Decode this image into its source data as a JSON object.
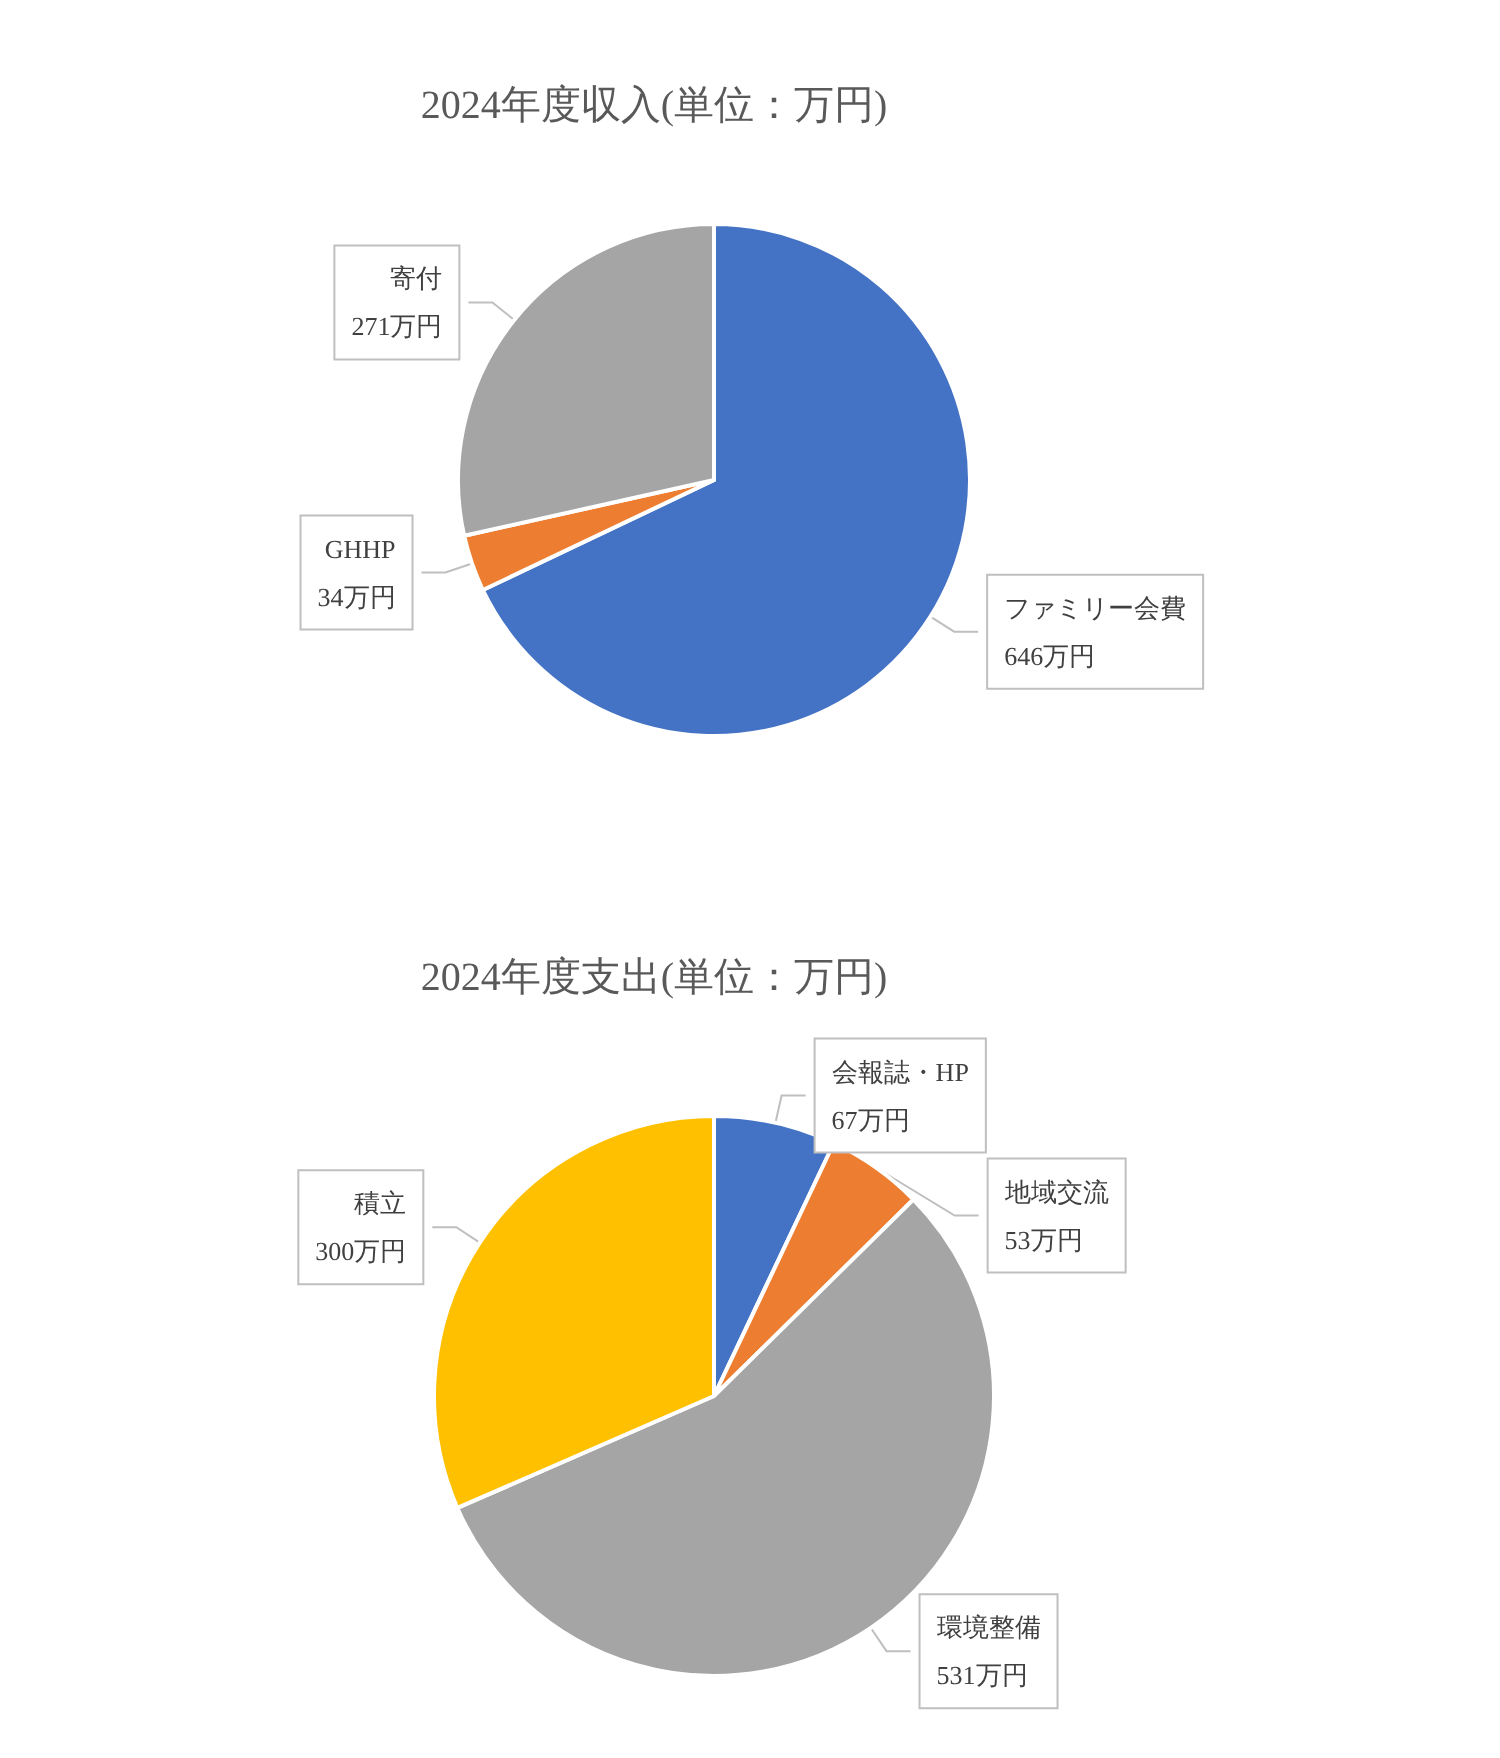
{
  "chart_data": [
    {
      "type": "pie",
      "title": "2024年度収入(単位：万円)",
      "categories": [
        "ファミリー会費",
        "GHHP",
        "寄付"
      ],
      "values": [
        646,
        34,
        271
      ],
      "colors": [
        "#4472c4",
        "#ed7d31",
        "#a5a5a5"
      ],
      "value_labels": [
        "646万円",
        "34万円",
        "271万円"
      ],
      "legend": false
    },
    {
      "type": "pie",
      "title": "2024年度支出(単位：万円)",
      "categories": [
        "会報誌・HP",
        "地域交流",
        "環境整備",
        "積立"
      ],
      "values": [
        67,
        53,
        531,
        300
      ],
      "colors": [
        "#4472c4",
        "#ed7d31",
        "#a5a5a5",
        "#ffc000"
      ],
      "value_labels": [
        "67万円",
        "53万円",
        "531万円",
        "300万円"
      ],
      "legend": false
    }
  ]
}
